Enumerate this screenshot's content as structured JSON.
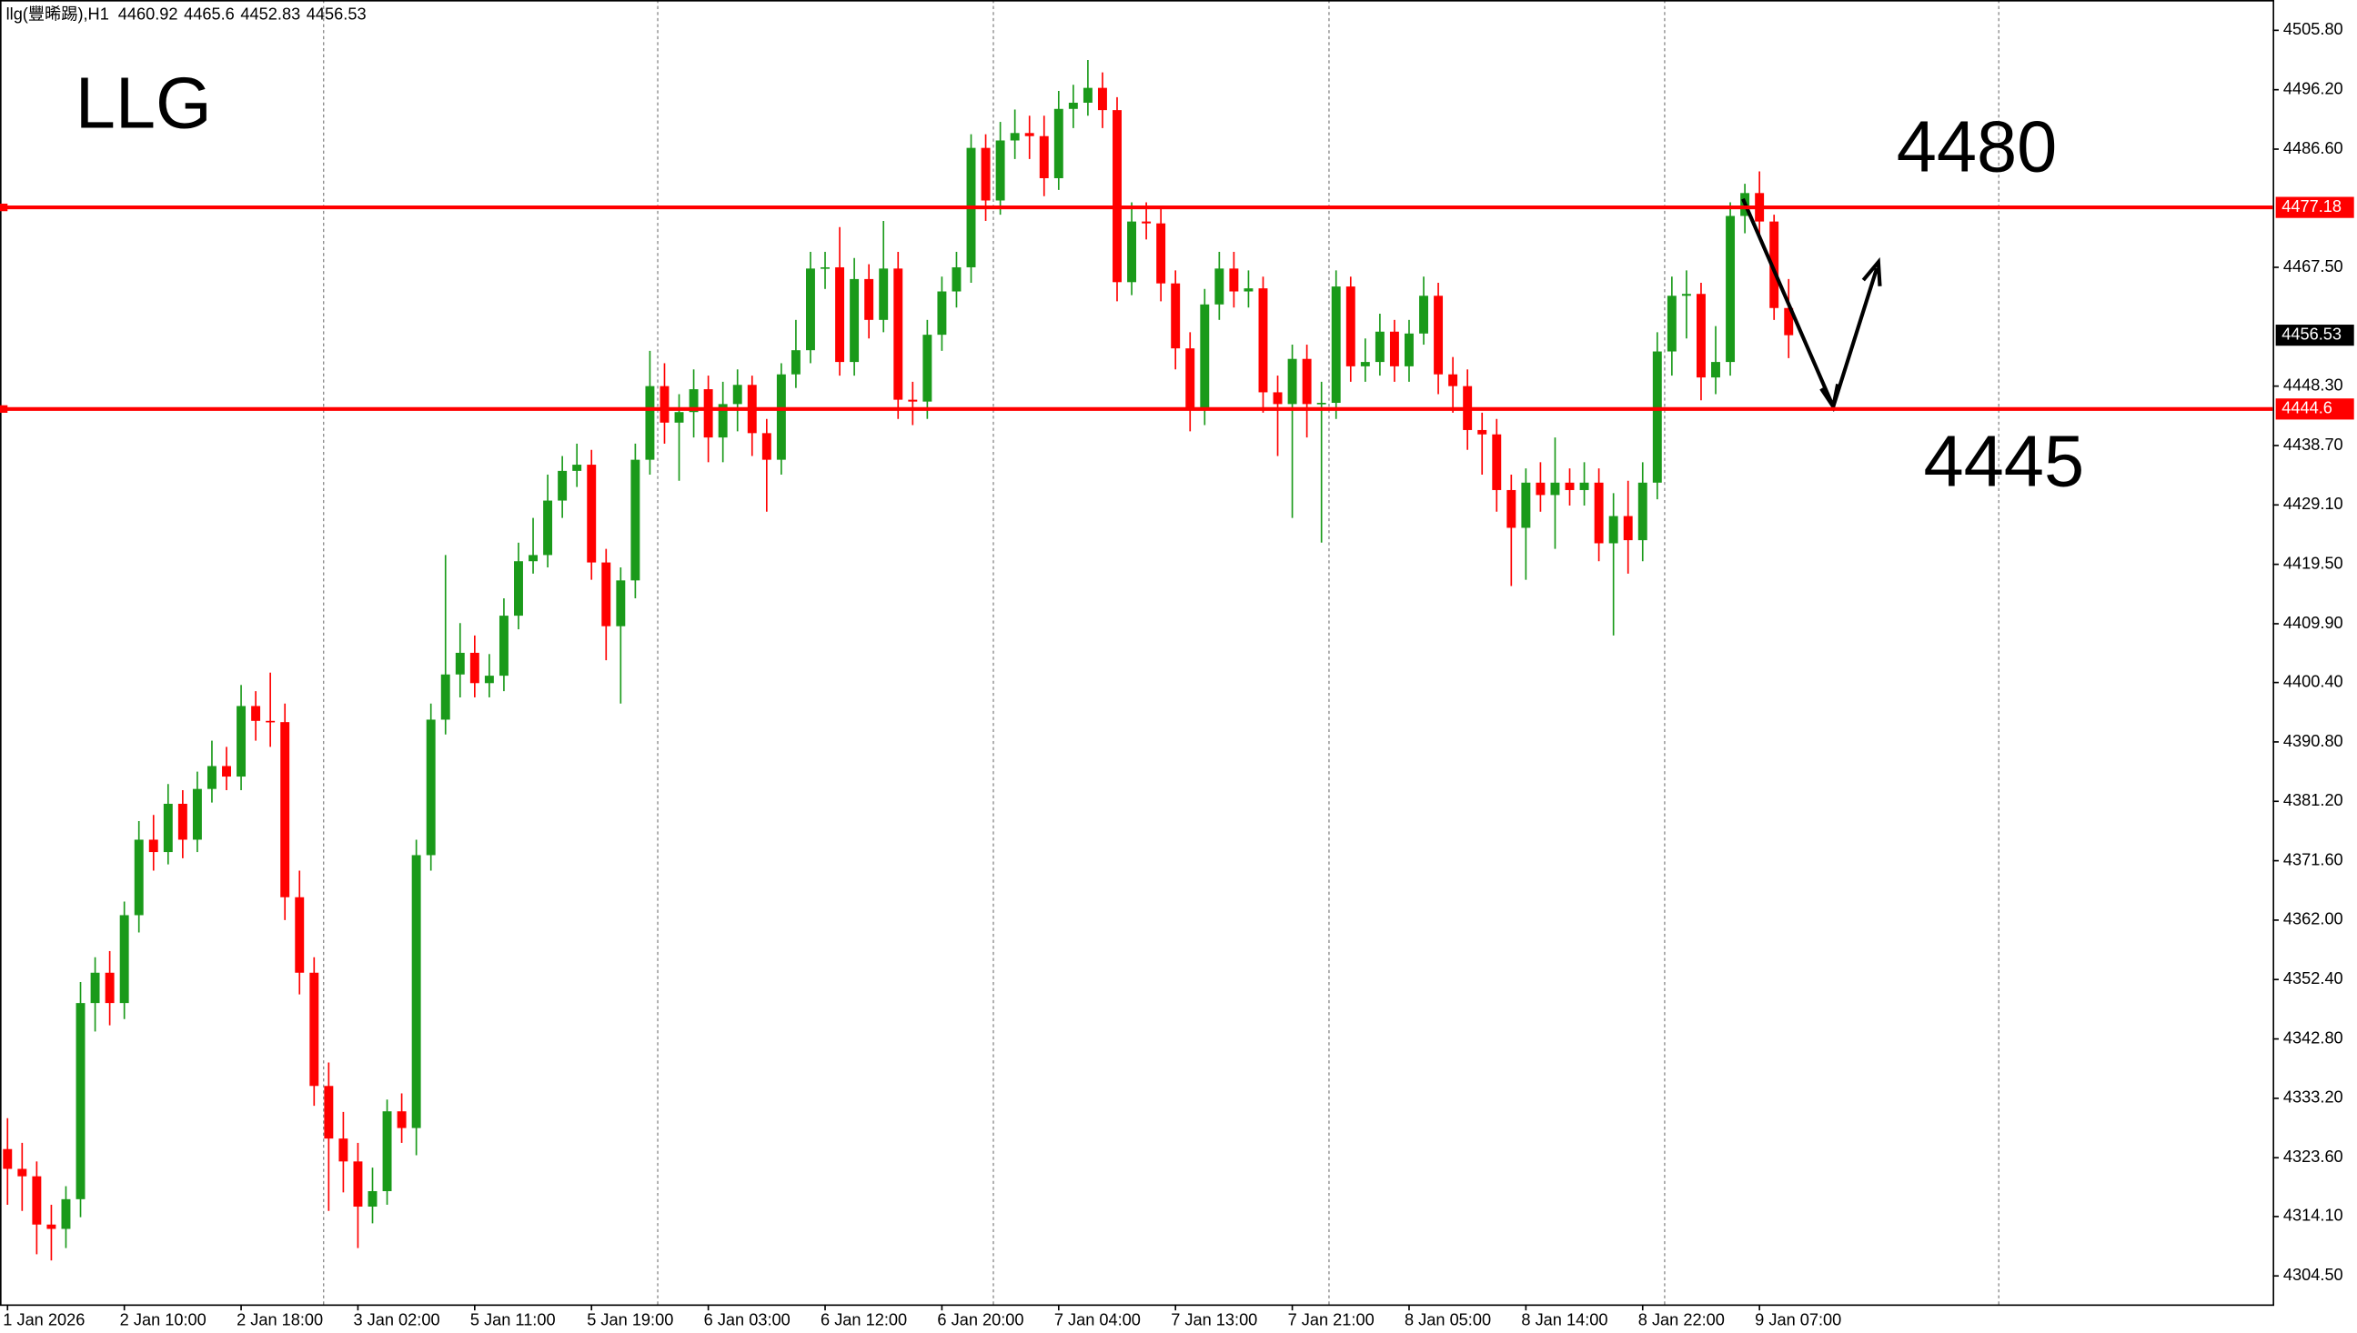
{
  "header": {
    "symbol": "llg(豐晞踢),H1"
  },
  "chart_data": {
    "type": "candlestick",
    "title": "LLG",
    "annotations": [
      "4480",
      "4445"
    ],
    "up_color": "#1a9a1a",
    "down_color": "#ff0000",
    "categories": [
      "1 Jan 2026",
      null,
      null,
      null,
      null,
      null,
      null,
      null,
      "2 Jan 10:00",
      null,
      null,
      null,
      null,
      null,
      null,
      null,
      "2 Jan 18:00",
      null,
      null,
      null,
      null,
      null,
      null,
      null,
      "3 Jan 02:00",
      null,
      null,
      null,
      null,
      null,
      null,
      null,
      "5 Jan 11:00",
      null,
      null,
      null,
      null,
      null,
      null,
      null,
      "5 Jan 19:00",
      null,
      null,
      null,
      null,
      null,
      null,
      null,
      "6 Jan 03:00",
      null,
      null,
      null,
      null,
      null,
      null,
      null,
      "6 Jan 12:00",
      null,
      null,
      null,
      null,
      null,
      null,
      null,
      "6 Jan 20:00",
      null,
      null,
      null,
      null,
      null,
      null,
      null,
      "7 Jan 04:00",
      null,
      null,
      null,
      null,
      null,
      null,
      null,
      "7 Jan 13:00",
      null,
      null,
      null,
      null,
      null,
      null,
      null,
      "7 Jan 21:00",
      null,
      null,
      null,
      null,
      null,
      null,
      null,
      "8 Jan 05:00",
      null,
      null,
      null,
      null,
      null,
      null,
      null,
      "8 Jan 14:00",
      null,
      null,
      null,
      null,
      null,
      null,
      null,
      "8 Jan 22:00",
      null,
      null,
      null,
      null,
      null,
      null,
      null,
      "9 Jan 07:00",
      null,
      null
    ],
    "open": [
      4325.0,
      4321.8,
      4320.6,
      4312.8,
      4312.1,
      4316.9,
      4348.6,
      4353.5,
      4348.6,
      4362.8,
      4375.0,
      4373.0,
      4380.8,
      4375.0,
      4383.2,
      4386.9,
      4385.2,
      4396.6,
      4394.2,
      4394.0,
      4365.7,
      4353.5,
      4335.2,
      4326.7,
      4323.0,
      4315.7,
      4318.2,
      4331.1,
      4328.4,
      4372.5,
      4394.4,
      4401.7,
      4405.2,
      4400.3,
      4401.5,
      4411.2,
      4420.0,
      4421.0,
      4429.8,
      4434.6,
      4435.6,
      4419.8,
      4409.5,
      4416.9,
      4436.4,
      4448.3,
      4442.4,
      4444.1,
      4447.8,
      4440.0,
      4445.4,
      4448.5,
      4440.7,
      4436.4,
      4450.2,
      4454.1,
      4467.3,
      4467.5,
      4452.2,
      4465.6,
      4459.0,
      4467.3,
      4446.1,
      4445.8,
      4456.6,
      4463.6,
      4467.5,
      4486.8,
      4478.3,
      4488.0,
      4489.2,
      4488.7,
      4481.9,
      4493.1,
      4494.1,
      4496.5,
      4492.9,
      4465.1,
      4474.9,
      4474.6,
      4464.9,
      4454.4,
      4444.4,
      4461.5,
      4467.3,
      4463.6,
      4464.1,
      4447.3,
      4445.4,
      4452.7,
      4445.4,
      4445.6,
      4464.4,
      4451.5,
      4452.2,
      4457.1,
      4451.5,
      4456.8,
      4462.9,
      4450.2,
      4448.3,
      4441.2,
      4440.5,
      4431.5,
      4425.4,
      4432.7,
      4430.7,
      4432.7,
      4431.5,
      4432.7,
      4422.9,
      4427.3,
      4423.4,
      4432.7,
      4453.9,
      4462.9,
      4463.2,
      4449.7,
      4452.2,
      4475.8,
      4479.5,
      4474.9,
      4460.92
    ],
    "high": [
      4330,
      4326,
      4323,
      4316,
      4319,
      4352,
      4356,
      4357,
      4365,
      4378,
      4379,
      4384,
      4383,
      4386,
      4391,
      4390,
      4400,
      4399,
      4402,
      4397,
      4370,
      4356,
      4339,
      4331,
      4326,
      4322,
      4333,
      4334,
      4375,
      4397,
      4421,
      4410,
      4408,
      4405,
      4414,
      4423,
      4427,
      4434,
      4437,
      4439,
      4438,
      4422,
      4419,
      4439,
      4454,
      4452,
      4447,
      4451,
      4450,
      4449,
      4451,
      4450,
      4443,
      4452,
      4459,
      4470,
      4470,
      4474,
      4469,
      4468,
      4475,
      4470,
      4449,
      4459,
      4466,
      4470,
      4489,
      4489,
      4491,
      4493,
      4492,
      4492,
      4496,
      4497,
      4501,
      4499,
      4495,
      4478,
      4478,
      4477,
      4467,
      4457,
      4464,
      4470,
      4470,
      4467,
      4466,
      4450,
      4455,
      4455,
      4449,
      4467,
      4466,
      4456,
      4460,
      4459,
      4459,
      4466,
      4465,
      4453,
      4451,
      4444,
      4443,
      4434,
      4435,
      4436,
      4440,
      4435,
      4436,
      4435,
      4431,
      4433,
      4436,
      4457,
      4466,
      4467,
      4465,
      4458,
      4478,
      4481,
      4483,
      4476,
      4465.6
    ],
    "low": [
      4316,
      4315,
      4308,
      4307,
      4309,
      4314,
      4344,
      4345,
      4346,
      4360,
      4370,
      4371,
      4372,
      4373,
      4381,
      4383,
      4383,
      4391,
      4390,
      4362,
      4350,
      4332,
      4315,
      4318,
      4309,
      4313,
      4316,
      4326,
      4324,
      4370,
      4392,
      4398,
      4398,
      4398,
      4399,
      4409,
      4418,
      4419,
      4427,
      4432,
      4417,
      4404,
      4397,
      4414,
      4434,
      4439,
      4433,
      4440,
      4436,
      4436,
      4441,
      4437,
      4428,
      4434,
      4448,
      4452,
      4464,
      4450,
      4450,
      4456,
      4457,
      4443,
      4442,
      4443,
      4454,
      4461,
      4465,
      4475,
      4476,
      4485,
      4485,
      4479,
      4480,
      4490,
      4492,
      4490,
      4462,
      4463,
      4472,
      4462,
      4451,
      4441,
      4442,
      4459,
      4461,
      4461,
      4444,
      4437,
      4427,
      4440,
      4423,
      4443,
      4449,
      4449,
      4450,
      4449,
      4449,
      4455,
      4447,
      4444,
      4438,
      4434,
      4428,
      4416,
      4417,
      4428,
      4422,
      4429,
      4429,
      4420,
      4408,
      4418,
      4420,
      4430,
      4450,
      4456,
      4446,
      4447,
      4450,
      4473,
      4472,
      4459,
      4452.83
    ],
    "close": [
      4321.8,
      4320.6,
      4312.8,
      4312.1,
      4316.9,
      4348.6,
      4353.5,
      4348.6,
      4362.8,
      4375.0,
      4373.0,
      4380.8,
      4375.0,
      4383.2,
      4386.9,
      4385.2,
      4396.6,
      4394.2,
      4394.0,
      4365.7,
      4353.5,
      4335.2,
      4326.7,
      4323.0,
      4315.7,
      4318.2,
      4331.1,
      4328.4,
      4372.5,
      4394.4,
      4401.7,
      4405.2,
      4400.3,
      4401.5,
      4411.2,
      4420.0,
      4421.0,
      4429.8,
      4434.6,
      4435.6,
      4419.8,
      4409.5,
      4416.9,
      4436.4,
      4448.3,
      4442.4,
      4444.1,
      4447.8,
      4440.0,
      4445.4,
      4448.5,
      4440.7,
      4436.4,
      4450.2,
      4454.1,
      4467.3,
      4467.5,
      4452.2,
      4465.6,
      4459.0,
      4467.3,
      4446.1,
      4445.8,
      4456.6,
      4463.6,
      4467.5,
      4486.8,
      4478.3,
      4488.0,
      4489.2,
      4488.7,
      4481.9,
      4493.1,
      4494.1,
      4496.5,
      4492.9,
      4465.1,
      4474.9,
      4474.6,
      4464.9,
      4454.4,
      4444.4,
      4461.5,
      4467.3,
      4463.6,
      4464.1,
      4447.3,
      4445.4,
      4452.7,
      4445.4,
      4445.6,
      4464.4,
      4451.5,
      4452.2,
      4457.1,
      4451.5,
      4456.8,
      4462.9,
      4450.2,
      4448.3,
      4441.2,
      4440.5,
      4431.5,
      4425.4,
      4432.7,
      4430.7,
      4432.7,
      4431.5,
      4432.7,
      4422.9,
      4427.3,
      4423.4,
      4432.7,
      4453.9,
      4462.9,
      4463.2,
      4449.7,
      4452.2,
      4475.8,
      4479.5,
      4474.9,
      4460.92,
      4456.53
    ],
    "ylim": [
      4299.9,
      4510.7
    ],
    "yticks": [
      {
        "value": 4505.8,
        "label": "4505.80"
      },
      {
        "value": 4496.2,
        "label": "4496.20"
      },
      {
        "value": 4486.6,
        "label": "4486.60"
      },
      {
        "value": 4467.5,
        "label": "4467.50"
      },
      {
        "value": 4448.3,
        "label": "4448.30"
      },
      {
        "value": 4438.7,
        "label": "4438.70"
      },
      {
        "value": 4429.1,
        "label": "4429.10"
      },
      {
        "value": 4419.5,
        "label": "4419.50"
      },
      {
        "value": 4409.9,
        "label": "4409.90"
      },
      {
        "value": 4400.4,
        "label": "4400.40"
      },
      {
        "value": 4390.8,
        "label": "4390.80"
      },
      {
        "value": 4381.2,
        "label": "4381.20"
      },
      {
        "value": 4371.6,
        "label": "4371.60"
      },
      {
        "value": 4362.0,
        "label": "4362.00"
      },
      {
        "value": 4352.4,
        "label": "4352.40"
      },
      {
        "value": 4342.8,
        "label": "4342.80"
      },
      {
        "value": 4333.2,
        "label": "4333.20"
      },
      {
        "value": 4323.6,
        "label": "4323.60"
      },
      {
        "value": 4314.1,
        "label": "4314.10"
      },
      {
        "value": 4304.5,
        "label": "4304.50"
      }
    ],
    "levels": [
      {
        "value": 4477.18,
        "color": "#ff0000"
      },
      {
        "value": 4444.6,
        "color": "#ff0000"
      }
    ]
  }
}
